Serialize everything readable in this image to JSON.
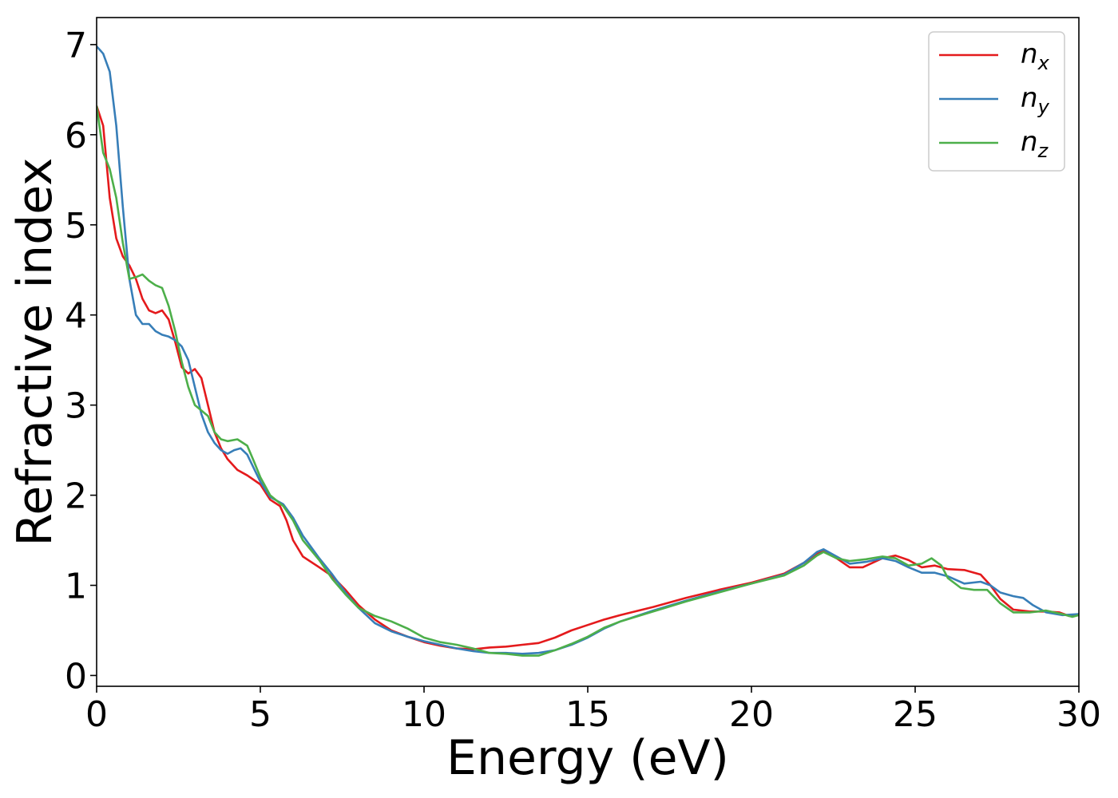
{
  "chart_data": {
    "type": "line",
    "title": "",
    "xlabel": "Energy (eV)",
    "ylabel": "Refractive index",
    "xlim": [
      0,
      30
    ],
    "ylim": [
      -0.12,
      7.3
    ],
    "xticks": [
      0,
      5,
      10,
      15,
      20,
      25,
      30
    ],
    "yticks": [
      0,
      1,
      2,
      3,
      4,
      5,
      6,
      7
    ],
    "grid": false,
    "legend_position": "top-right",
    "series": [
      {
        "name": "n_x",
        "label_main": "n",
        "label_sub": "x",
        "color": "#e41a1c",
        "points": [
          [
            0,
            6.32
          ],
          [
            0.2,
            6.1
          ],
          [
            0.4,
            5.3
          ],
          [
            0.6,
            4.85
          ],
          [
            0.8,
            4.65
          ],
          [
            1.0,
            4.55
          ],
          [
            1.2,
            4.4
          ],
          [
            1.4,
            4.18
          ],
          [
            1.6,
            4.05
          ],
          [
            1.8,
            4.02
          ],
          [
            2.0,
            4.05
          ],
          [
            2.2,
            3.95
          ],
          [
            2.4,
            3.7
          ],
          [
            2.6,
            3.42
          ],
          [
            2.8,
            3.35
          ],
          [
            3.0,
            3.4
          ],
          [
            3.2,
            3.3
          ],
          [
            3.4,
            3.0
          ],
          [
            3.6,
            2.7
          ],
          [
            3.8,
            2.52
          ],
          [
            4.0,
            2.4
          ],
          [
            4.3,
            2.28
          ],
          [
            4.6,
            2.22
          ],
          [
            5.0,
            2.12
          ],
          [
            5.3,
            1.95
          ],
          [
            5.6,
            1.88
          ],
          [
            5.8,
            1.72
          ],
          [
            6.0,
            1.5
          ],
          [
            6.3,
            1.32
          ],
          [
            6.8,
            1.2
          ],
          [
            7.2,
            1.1
          ],
          [
            7.6,
            0.95
          ],
          [
            8.0,
            0.78
          ],
          [
            8.5,
            0.62
          ],
          [
            9.0,
            0.5
          ],
          [
            9.5,
            0.43
          ],
          [
            10.0,
            0.37
          ],
          [
            10.5,
            0.33
          ],
          [
            11.0,
            0.3
          ],
          [
            11.5,
            0.29
          ],
          [
            12.0,
            0.31
          ],
          [
            12.5,
            0.32
          ],
          [
            13.0,
            0.34
          ],
          [
            13.5,
            0.36
          ],
          [
            14.0,
            0.42
          ],
          [
            14.5,
            0.5
          ],
          [
            15.0,
            0.56
          ],
          [
            15.5,
            0.62
          ],
          [
            16.0,
            0.67
          ],
          [
            17.0,
            0.76
          ],
          [
            18.0,
            0.86
          ],
          [
            19.0,
            0.95
          ],
          [
            20.0,
            1.03
          ],
          [
            21.0,
            1.13
          ],
          [
            21.6,
            1.25
          ],
          [
            22.0,
            1.35
          ],
          [
            22.2,
            1.38
          ],
          [
            22.6,
            1.3
          ],
          [
            23.0,
            1.2
          ],
          [
            23.4,
            1.2
          ],
          [
            24.0,
            1.3
          ],
          [
            24.4,
            1.33
          ],
          [
            24.8,
            1.28
          ],
          [
            25.2,
            1.2
          ],
          [
            25.6,
            1.22
          ],
          [
            26.0,
            1.18
          ],
          [
            26.5,
            1.17
          ],
          [
            27.0,
            1.12
          ],
          [
            27.3,
            1.0
          ],
          [
            27.6,
            0.85
          ],
          [
            28.0,
            0.73
          ],
          [
            28.5,
            0.71
          ],
          [
            29.0,
            0.71
          ],
          [
            29.4,
            0.7
          ],
          [
            29.7,
            0.66
          ],
          [
            30.0,
            0.68
          ]
        ]
      },
      {
        "name": "n_y",
        "label_main": "n",
        "label_sub": "y",
        "color": "#377eb8",
        "points": [
          [
            0,
            6.98
          ],
          [
            0.2,
            6.9
          ],
          [
            0.4,
            6.7
          ],
          [
            0.6,
            6.1
          ],
          [
            0.8,
            5.2
          ],
          [
            1.0,
            4.4
          ],
          [
            1.2,
            4.0
          ],
          [
            1.4,
            3.9
          ],
          [
            1.6,
            3.9
          ],
          [
            1.8,
            3.82
          ],
          [
            2.0,
            3.78
          ],
          [
            2.2,
            3.76
          ],
          [
            2.4,
            3.72
          ],
          [
            2.6,
            3.65
          ],
          [
            2.8,
            3.5
          ],
          [
            3.0,
            3.2
          ],
          [
            3.2,
            2.9
          ],
          [
            3.4,
            2.7
          ],
          [
            3.6,
            2.58
          ],
          [
            3.8,
            2.5
          ],
          [
            4.0,
            2.46
          ],
          [
            4.2,
            2.5
          ],
          [
            4.4,
            2.52
          ],
          [
            4.6,
            2.45
          ],
          [
            4.8,
            2.3
          ],
          [
            5.0,
            2.15
          ],
          [
            5.3,
            1.98
          ],
          [
            5.7,
            1.9
          ],
          [
            6.0,
            1.75
          ],
          [
            6.3,
            1.55
          ],
          [
            6.8,
            1.3
          ],
          [
            7.2,
            1.12
          ],
          [
            7.6,
            0.92
          ],
          [
            8.0,
            0.75
          ],
          [
            8.5,
            0.58
          ],
          [
            9.0,
            0.49
          ],
          [
            9.5,
            0.43
          ],
          [
            10.0,
            0.38
          ],
          [
            10.5,
            0.34
          ],
          [
            11.0,
            0.3
          ],
          [
            11.5,
            0.27
          ],
          [
            12.0,
            0.25
          ],
          [
            12.5,
            0.25
          ],
          [
            13.0,
            0.24
          ],
          [
            13.5,
            0.25
          ],
          [
            14.0,
            0.28
          ],
          [
            14.5,
            0.34
          ],
          [
            15.0,
            0.42
          ],
          [
            15.5,
            0.52
          ],
          [
            16.0,
            0.6
          ],
          [
            17.0,
            0.72
          ],
          [
            18.0,
            0.83
          ],
          [
            19.0,
            0.93
          ],
          [
            20.0,
            1.02
          ],
          [
            21.0,
            1.12
          ],
          [
            21.6,
            1.25
          ],
          [
            22.0,
            1.37
          ],
          [
            22.2,
            1.4
          ],
          [
            22.6,
            1.32
          ],
          [
            23.0,
            1.24
          ],
          [
            23.5,
            1.26
          ],
          [
            24.0,
            1.3
          ],
          [
            24.4,
            1.27
          ],
          [
            24.8,
            1.2
          ],
          [
            25.2,
            1.14
          ],
          [
            25.6,
            1.14
          ],
          [
            26.0,
            1.1
          ],
          [
            26.5,
            1.02
          ],
          [
            27.0,
            1.04
          ],
          [
            27.3,
            1.0
          ],
          [
            27.6,
            0.92
          ],
          [
            28.0,
            0.88
          ],
          [
            28.3,
            0.86
          ],
          [
            28.6,
            0.78
          ],
          [
            29.0,
            0.7
          ],
          [
            29.5,
            0.67
          ],
          [
            30.0,
            0.68
          ]
        ]
      },
      {
        "name": "n_z",
        "label_main": "n",
        "label_sub": "z",
        "color": "#4daf4a",
        "points": [
          [
            0,
            6.32
          ],
          [
            0.2,
            5.8
          ],
          [
            0.4,
            5.62
          ],
          [
            0.6,
            5.3
          ],
          [
            0.8,
            4.8
          ],
          [
            1.0,
            4.4
          ],
          [
            1.2,
            4.42
          ],
          [
            1.4,
            4.45
          ],
          [
            1.6,
            4.38
          ],
          [
            1.8,
            4.33
          ],
          [
            2.0,
            4.3
          ],
          [
            2.2,
            4.1
          ],
          [
            2.4,
            3.82
          ],
          [
            2.6,
            3.48
          ],
          [
            2.8,
            3.2
          ],
          [
            3.0,
            3.0
          ],
          [
            3.2,
            2.94
          ],
          [
            3.4,
            2.88
          ],
          [
            3.6,
            2.7
          ],
          [
            3.8,
            2.62
          ],
          [
            4.0,
            2.6
          ],
          [
            4.3,
            2.62
          ],
          [
            4.6,
            2.55
          ],
          [
            4.8,
            2.38
          ],
          [
            5.0,
            2.2
          ],
          [
            5.3,
            2.0
          ],
          [
            5.7,
            1.88
          ],
          [
            6.0,
            1.72
          ],
          [
            6.3,
            1.5
          ],
          [
            6.8,
            1.28
          ],
          [
            7.2,
            1.07
          ],
          [
            7.6,
            0.9
          ],
          [
            8.0,
            0.75
          ],
          [
            8.5,
            0.66
          ],
          [
            9.0,
            0.6
          ],
          [
            9.5,
            0.52
          ],
          [
            10.0,
            0.42
          ],
          [
            10.5,
            0.37
          ],
          [
            11.0,
            0.34
          ],
          [
            11.5,
            0.3
          ],
          [
            12.0,
            0.25
          ],
          [
            12.5,
            0.24
          ],
          [
            13.0,
            0.22
          ],
          [
            13.5,
            0.22
          ],
          [
            14.0,
            0.28
          ],
          [
            14.5,
            0.35
          ],
          [
            15.0,
            0.43
          ],
          [
            15.5,
            0.53
          ],
          [
            16.0,
            0.6
          ],
          [
            17.0,
            0.71
          ],
          [
            18.0,
            0.82
          ],
          [
            19.0,
            0.92
          ],
          [
            20.0,
            1.02
          ],
          [
            21.0,
            1.11
          ],
          [
            21.6,
            1.22
          ],
          [
            22.0,
            1.33
          ],
          [
            22.2,
            1.37
          ],
          [
            22.6,
            1.3
          ],
          [
            23.0,
            1.27
          ],
          [
            23.5,
            1.29
          ],
          [
            24.0,
            1.32
          ],
          [
            24.4,
            1.3
          ],
          [
            24.8,
            1.22
          ],
          [
            25.2,
            1.24
          ],
          [
            25.5,
            1.3
          ],
          [
            25.8,
            1.22
          ],
          [
            26.0,
            1.08
          ],
          [
            26.4,
            0.97
          ],
          [
            26.8,
            0.95
          ],
          [
            27.2,
            0.95
          ],
          [
            27.6,
            0.8
          ],
          [
            28.0,
            0.7
          ],
          [
            28.5,
            0.7
          ],
          [
            29.0,
            0.72
          ],
          [
            29.5,
            0.68
          ],
          [
            29.8,
            0.65
          ],
          [
            30.0,
            0.67
          ]
        ]
      }
    ]
  }
}
